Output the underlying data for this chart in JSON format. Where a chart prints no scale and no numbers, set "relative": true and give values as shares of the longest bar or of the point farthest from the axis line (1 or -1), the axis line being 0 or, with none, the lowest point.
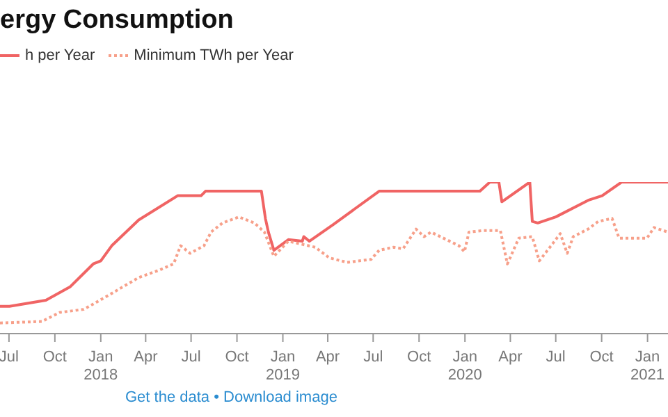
{
  "chart_data": {
    "type": "line",
    "title": "ergy Consumption",
    "relative": true,
    "legend": "top left",
    "marker": "none",
    "xlim": [
      "2017-06-13",
      "2021-02-11"
    ],
    "xticks": [
      {
        "value": "2017-07",
        "label": "Jul"
      },
      {
        "value": "2017-10",
        "label": "Oct"
      },
      {
        "value": "2018-01",
        "label": "Jan\n2018"
      },
      {
        "value": "2018-04",
        "label": "Apr"
      },
      {
        "value": "2018-07",
        "label": "Jul"
      },
      {
        "value": "2018-10",
        "label": "Oct"
      },
      {
        "value": "2019-01",
        "label": "Jan\n2019"
      },
      {
        "value": "2019-04",
        "label": "Apr"
      },
      {
        "value": "2019-07",
        "label": "Jul"
      },
      {
        "value": "2019-10",
        "label": "Oct"
      },
      {
        "value": "2020-01",
        "label": "Jan\n2020"
      },
      {
        "value": "2020-04",
        "label": "Apr"
      },
      {
        "value": "2020-07",
        "label": "Jul"
      },
      {
        "value": "2020-10",
        "label": "Oct"
      },
      {
        "value": "2021-01",
        "label": "Jan\n2021"
      }
    ],
    "series": [
      {
        "name": "h per Year",
        "color": "#f06464",
        "line_style": "solid",
        "x": [
          "2017-06-13",
          "2017-07-02",
          "2017-09-13",
          "2017-11-01",
          "2017-12-17",
          "2018-01-01",
          "2018-01-23",
          "2018-03-18",
          "2018-06-04",
          "2018-07-21",
          "2018-07-30",
          "2018-11-19",
          "2018-11-27",
          "2018-12-03",
          "2018-12-14",
          "2019-01-12",
          "2019-02-09",
          "2019-02-12",
          "2019-02-23",
          "2019-04-12",
          "2019-07-13",
          "2020-01-31",
          "2020-02-20",
          "2020-03-09",
          "2020-03-15",
          "2020-05-10",
          "2020-05-15",
          "2020-05-26",
          "2020-07-01",
          "2020-09-04",
          "2020-10-02",
          "2020-11-10",
          "2021-02-11"
        ],
        "values": [
          0.18,
          0.18,
          0.22,
          0.31,
          0.46,
          0.48,
          0.58,
          0.75,
          0.91,
          0.91,
          0.94,
          0.94,
          0.76,
          0.67,
          0.55,
          0.62,
          0.61,
          0.64,
          0.61,
          0.72,
          0.94,
          0.94,
          1,
          1,
          0.87,
          1,
          0.74,
          0.73,
          0.77,
          0.88,
          0.91,
          1,
          1
        ]
      },
      {
        "name": "Minimum TWh per Year",
        "color": "#f7a08a",
        "line_style": "dotted",
        "x": [
          "2017-06-13",
          "2017-09-05",
          "2017-10-11",
          "2017-11-28",
          "2018-01-15",
          "2018-03-18",
          "2018-04-29",
          "2018-05-27",
          "2018-06-10",
          "2018-06-29",
          "2018-07-27",
          "2018-08-10",
          "2018-09-02",
          "2018-10-05",
          "2018-11-05",
          "2018-11-25",
          "2018-12-14",
          "2019-01-12",
          "2019-03-07",
          "2019-04-04",
          "2019-05-10",
          "2019-06-27",
          "2019-07-13",
          "2019-08-11",
          "2019-08-30",
          "2019-09-25",
          "2019-10-11",
          "2019-10-25",
          "2019-12-20",
          "2019-12-31",
          "2020-01-09",
          "2020-02-06",
          "2020-03-12",
          "2020-03-26",
          "2020-04-18",
          "2020-05-15",
          "2020-05-29",
          "2020-06-24",
          "2020-07-10",
          "2020-07-24",
          "2020-08-05",
          "2020-09-04",
          "2020-09-24",
          "2020-10-22",
          "2020-11-05",
          "2020-12-31",
          "2021-01-14",
          "2021-02-11"
        ],
        "values": [
          0.07,
          0.08,
          0.14,
          0.16,
          0.25,
          0.37,
          0.42,
          0.46,
          0.58,
          0.53,
          0.58,
          0.67,
          0.73,
          0.77,
          0.73,
          0.67,
          0.51,
          0.61,
          0.57,
          0.5,
          0.47,
          0.49,
          0.55,
          0.57,
          0.56,
          0.69,
          0.64,
          0.67,
          0.58,
          0.54,
          0.67,
          0.68,
          0.68,
          0.46,
          0.63,
          0.64,
          0.48,
          0.59,
          0.66,
          0.53,
          0.64,
          0.69,
          0.74,
          0.76,
          0.63,
          0.63,
          0.7,
          0.67
        ]
      }
    ],
    "annotations": [
      "Get the data • Download image"
    ]
  }
}
